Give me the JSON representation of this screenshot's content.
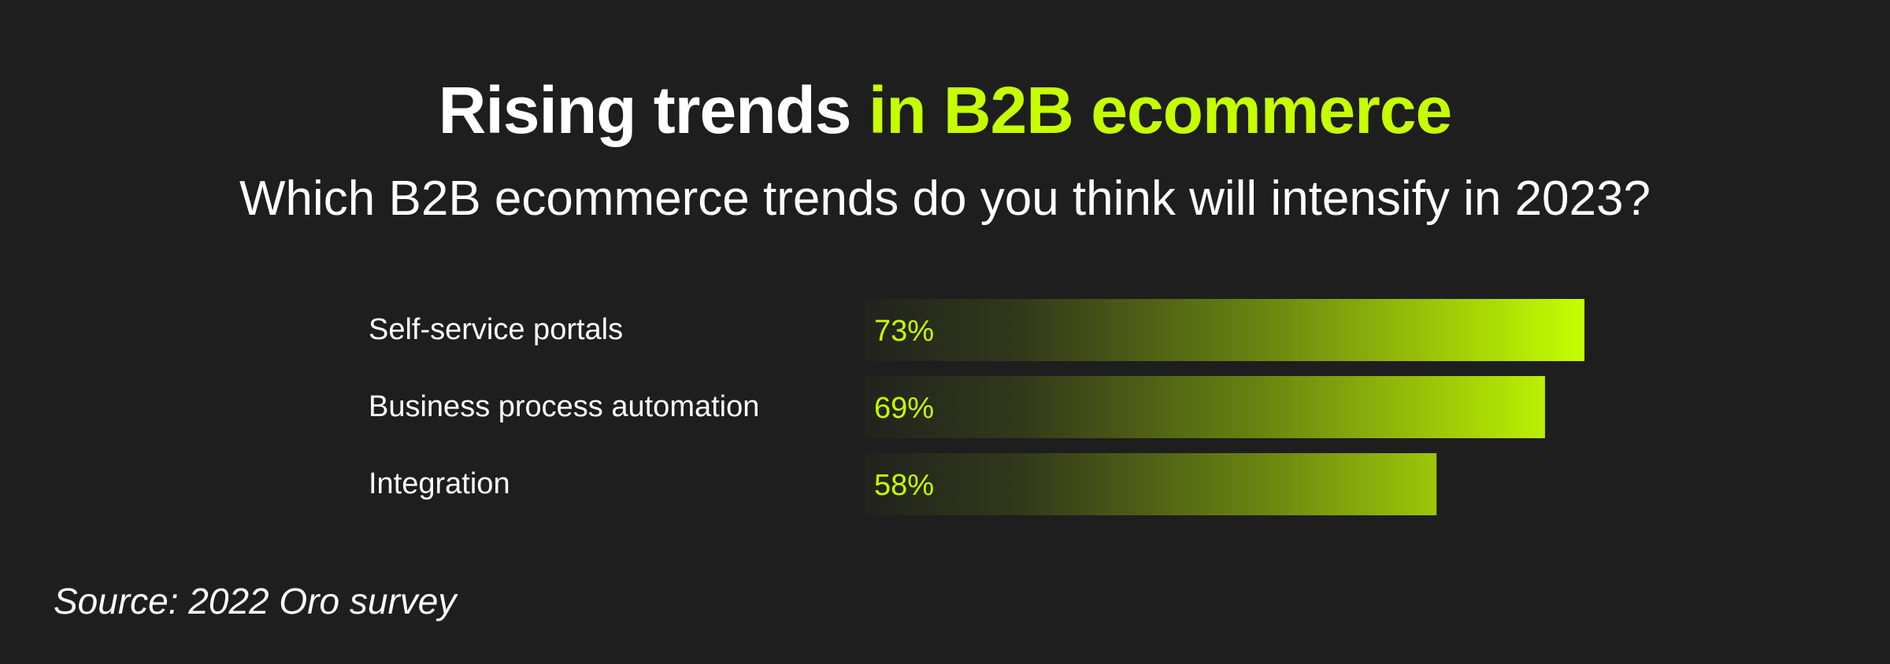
{
  "title_main": "Rising trends",
  "title_accent": "in B2B ecommerce",
  "subtitle": "Which B2B ecommerce trends do you think will intensify in 2023?",
  "source": "Source: 2022 Oro survey",
  "colors": {
    "background": "#1e1e1e",
    "accent": "#c6ff00",
    "text": "#ffffff"
  },
  "chart_data": {
    "type": "bar",
    "orientation": "horizontal",
    "categories": [
      "Self-service portals",
      "Business process automation",
      "Integration"
    ],
    "values": [
      73,
      69,
      58
    ],
    "value_labels": [
      "73%",
      "69%",
      "58%"
    ],
    "unit": "%",
    "xlim": [
      0,
      100
    ],
    "grid": false,
    "legend": "none"
  }
}
